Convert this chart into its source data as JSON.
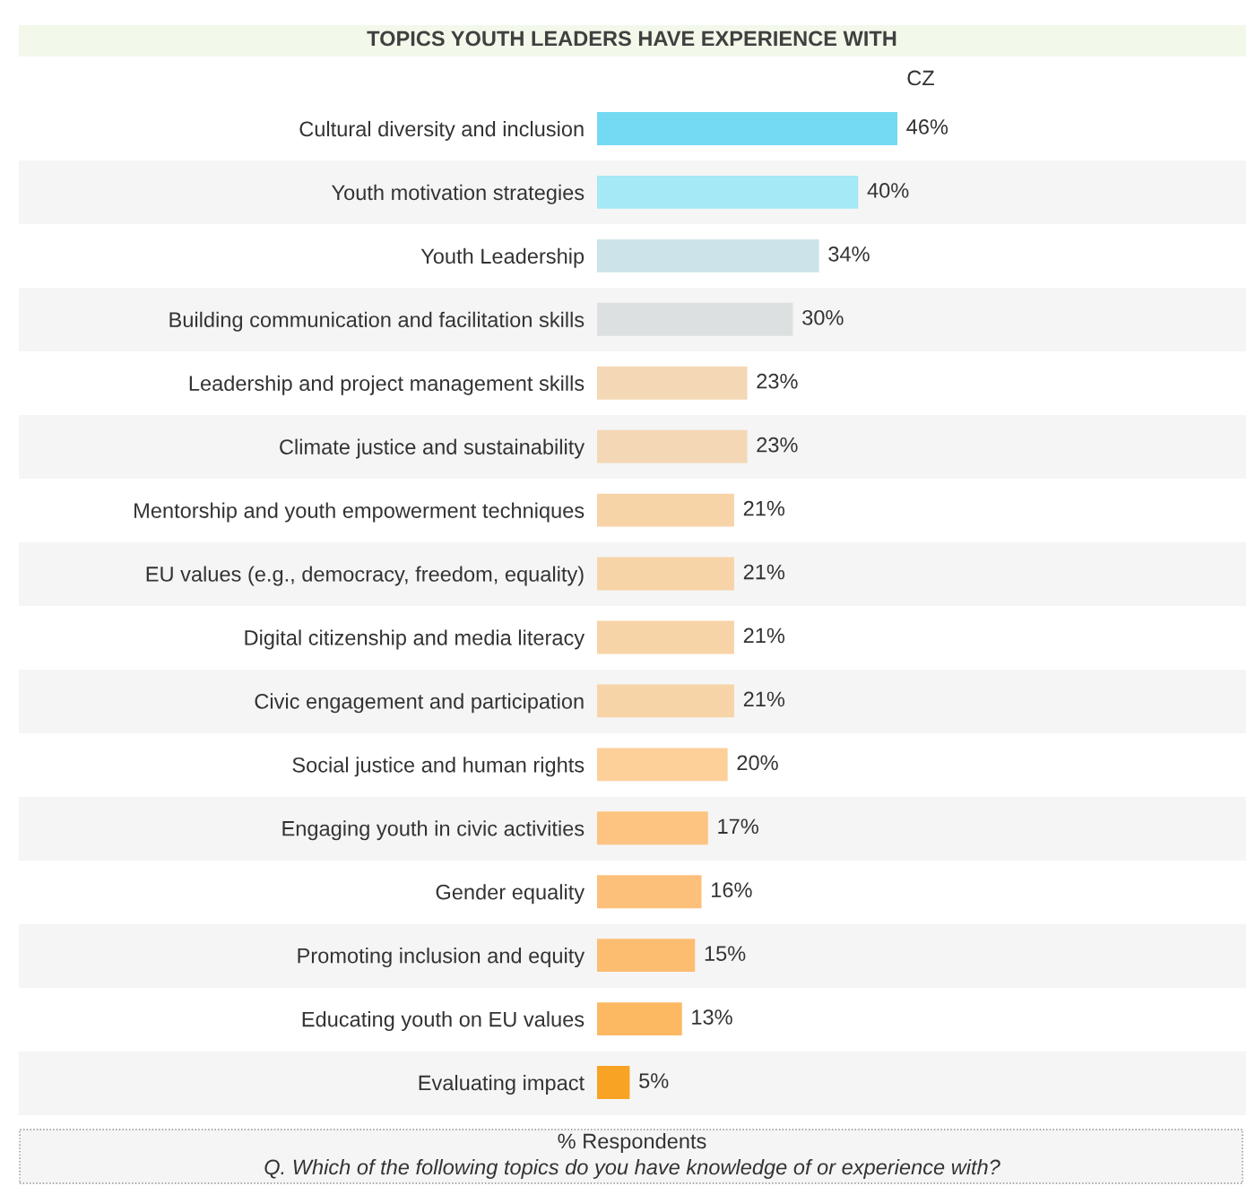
{
  "chart_data": {
    "type": "bar",
    "orientation": "horizontal",
    "title": "TOPICS YOUTH LEADERS HAVE EXPERIENCE WITH",
    "categories": [
      "Cultural diversity and inclusion",
      "Youth motivation strategies",
      "Youth Leadership",
      "Building communication and facilitation skills",
      "Leadership and project management skills",
      "Climate justice and sustainability",
      "Mentorship and youth empowerment techniques",
      "EU values (e.g., democracy, freedom, equality)",
      "Digital citizenship and media literacy",
      "Civic engagement and participation",
      "Social justice and human rights",
      "Engaging youth in civic activities",
      "Gender equality",
      "Promoting inclusion and equity",
      "Educating youth on EU values",
      "Evaluating impact"
    ],
    "series": [
      {
        "name": "CZ",
        "values": [
          46,
          40,
          34,
          30,
          23,
          23,
          21,
          21,
          21,
          21,
          20,
          17,
          16,
          15,
          13,
          5
        ],
        "colors": [
          "#74d9f2",
          "#a5e8f6",
          "#cce4e9",
          "#dde0e0",
          "#f4d7b5",
          "#f4d7b5",
          "#f7d4a8",
          "#f7d4a8",
          "#f7d4a8",
          "#f7d4a8",
          "#fdd09a",
          "#fdc481",
          "#fdc07a",
          "#fdbd70",
          "#fdb862",
          "#f9a324"
        ],
        "value_labels": [
          "46%",
          "40%",
          "34%",
          "30%",
          "23%",
          "23%",
          "21%",
          "21%",
          "21%",
          "21%",
          "20%",
          "17%",
          "16%",
          "15%",
          "13%",
          "5%"
        ]
      }
    ],
    "tick_labels": "y",
    "grid": false,
    "xlabel": "% Respondents",
    "annotations": [
      "Q. Which of the following topics do you have knowledge of or experience with?"
    ]
  }
}
